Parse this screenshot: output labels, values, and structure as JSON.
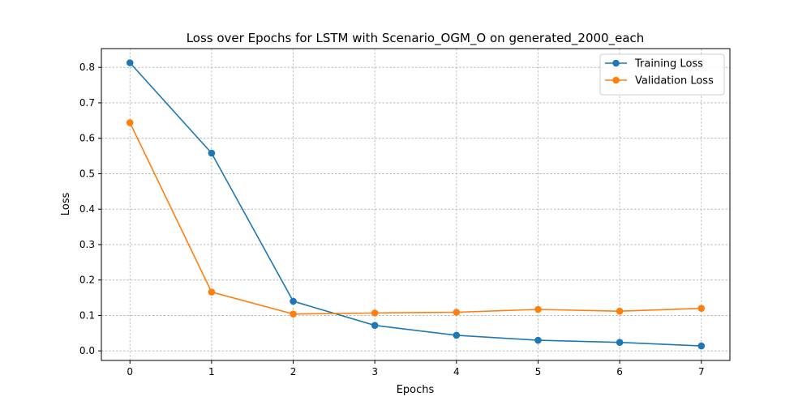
{
  "chart_data": {
    "type": "line",
    "title": "Loss over Epochs for LSTM with Scenario_OGM_O on generated_2000_each",
    "xlabel": "Epochs",
    "ylabel": "Loss",
    "x": [
      0,
      1,
      2,
      3,
      4,
      5,
      6,
      7
    ],
    "xticks": [
      "0",
      "1",
      "2",
      "3",
      "4",
      "5",
      "6",
      "7"
    ],
    "yticks": [
      "0.0",
      "0.1",
      "0.2",
      "0.3",
      "0.4",
      "0.5",
      "0.6",
      "0.7",
      "0.8"
    ],
    "xlim": [
      -0.35,
      7.35
    ],
    "ylim": [
      -0.027,
      0.853
    ],
    "grid": true,
    "legend_position": "top-right",
    "series": [
      {
        "name": "Training Loss",
        "color": "#1f77b4",
        "values": [
          0.813,
          0.558,
          0.14,
          0.072,
          0.044,
          0.03,
          0.024,
          0.014
        ]
      },
      {
        "name": "Validation Loss",
        "color": "#ff7f0e",
        "values": [
          0.644,
          0.166,
          0.104,
          0.107,
          0.109,
          0.117,
          0.112,
          0.12
        ]
      }
    ]
  }
}
